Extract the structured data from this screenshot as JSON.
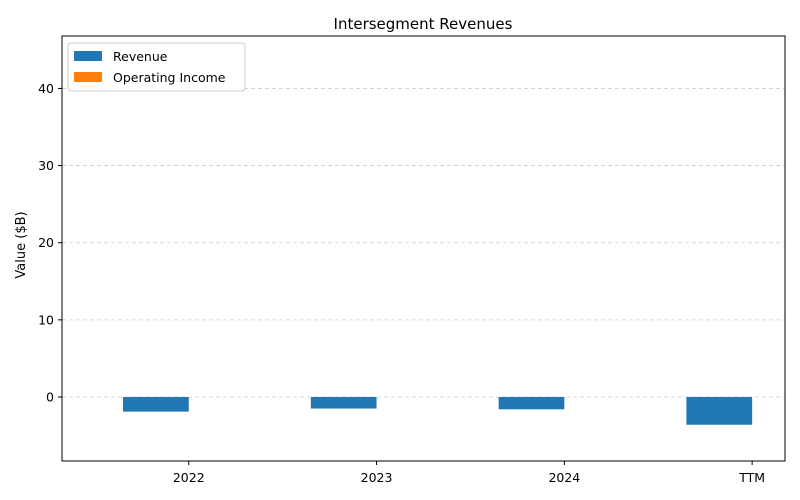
{
  "chart_data": {
    "type": "bar",
    "title": "Intersegment Revenues",
    "xlabel": "",
    "ylabel": "Value ($B)",
    "categories": [
      "2022",
      "2023",
      "2024",
      "TTM"
    ],
    "series": [
      {
        "name": "Revenue",
        "color": "#1f77b4",
        "values": [
          -1.9,
          -1.5,
          -1.6,
          -3.6
        ]
      },
      {
        "name": "Operating Income",
        "color": "#ff7f0e",
        "values": [
          0,
          0,
          0,
          0
        ]
      }
    ],
    "ylim": [
      -8.3,
      46.8
    ],
    "yticks": [
      0,
      10,
      20,
      30,
      40
    ],
    "grid": "y-dashed",
    "legend": "top-left"
  }
}
